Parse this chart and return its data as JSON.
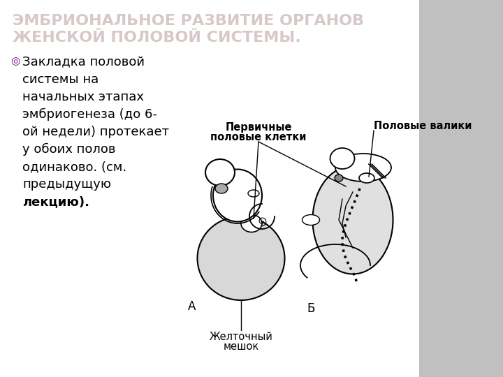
{
  "title_line1": "ЭМБРИОНАЛЬНОЕ РАЗВИТИЕ ОРГАНОВ",
  "title_line2": "ЖЕНСКОЙ ПОЛОВОЙ СИСТЕМЫ.",
  "title_color": "#d8c8c8",
  "title_fontsize": 16,
  "bg_color": "#f0f0f0",
  "slide_bg": "#ffffff",
  "right_bg": "#c0c0c0",
  "bullet_symbol": "◎",
  "bullet_color": "#800080",
  "bullet_lines_normal": [
    "Закладка половой",
    "системы на",
    "начальных этапах",
    "эмбриогенеза (до 6-",
    "ой недели) протекает",
    "у обоих полов",
    "одинаково. (см.",
    "предыдущую"
  ],
  "bullet_line_bold": "лекцию).",
  "label_pervichnye_1": "Первичные",
  "label_pervichnye_2": "половые клетки",
  "label_polovye_valiki": "Половые валики",
  "label_a": "А",
  "label_b": "Б",
  "label_zheltochny_1": "Желточный",
  "label_zheltochny_2": "мешок",
  "text_fontsize": 13,
  "annotation_fontsize": 10.5
}
